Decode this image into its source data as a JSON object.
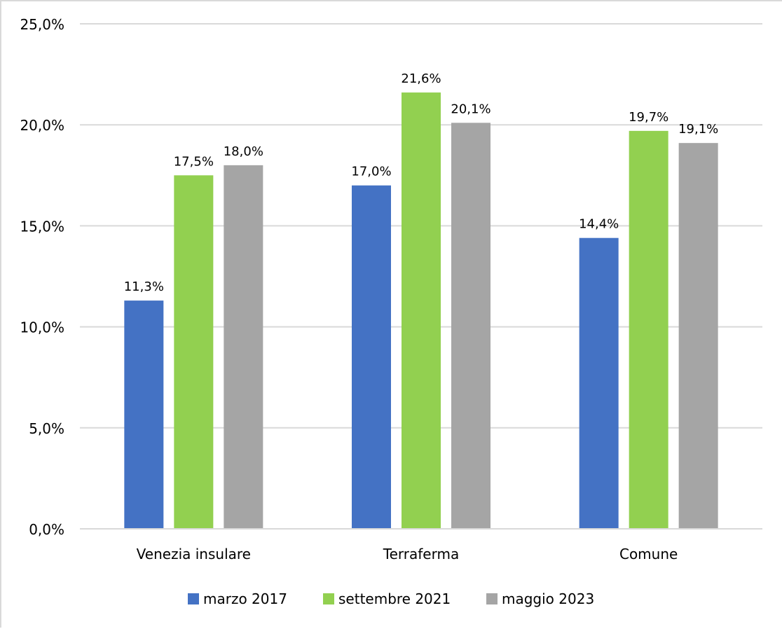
{
  "chart_data": {
    "type": "bar",
    "title": "",
    "xlabel": "",
    "ylabel": "",
    "categories": [
      "Venezia insulare",
      "Terraferma",
      "Comune"
    ],
    "series": [
      {
        "name": "marzo 2017",
        "color": "#4472c4",
        "values": [
          11.3,
          17.0,
          14.4
        ],
        "labels": [
          "11,3%",
          "17,0%",
          "14,4%"
        ]
      },
      {
        "name": "settembre 2021",
        "color": "#92d050",
        "values": [
          17.5,
          21.6,
          19.7
        ],
        "labels": [
          "17,5%",
          "21,6%",
          "19,7%"
        ]
      },
      {
        "name": "maggio 2023",
        "color": "#a5a5a5",
        "values": [
          18.0,
          20.1,
          19.1
        ],
        "labels": [
          "18,0%",
          "20,1%",
          "19,1%"
        ]
      }
    ],
    "ylim": [
      0,
      25
    ],
    "yticks": [
      0,
      5,
      10,
      15,
      20,
      25
    ],
    "ytick_labels": [
      "0,0%",
      "5,0%",
      "10,0%",
      "15,0%",
      "20,0%",
      "25,0%"
    ],
    "grid": true,
    "legend_position": "bottom"
  }
}
